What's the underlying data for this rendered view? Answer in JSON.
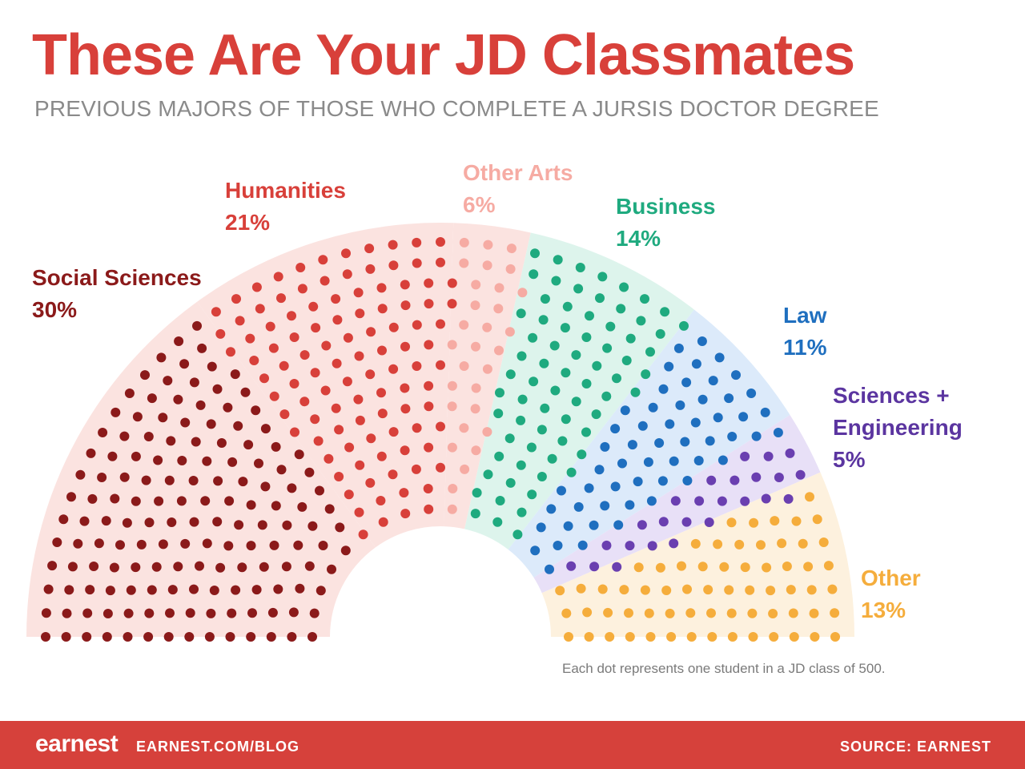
{
  "header": {
    "title": "These Are Your JD Classmates",
    "subtitle": "PREVIOUS MAJORS OF THOSE WHO COMPLETE A JURSIS DOCTOR DEGREE"
  },
  "chart_data": {
    "type": "parliament dot chart",
    "total_dots": 500,
    "series": [
      {
        "name": "Social Sciences",
        "label": "30%",
        "value": 30,
        "color": "#8b1a1a",
        "bg": "#fbe3e0"
      },
      {
        "name": "Humanities",
        "label": "21%",
        "value": 21,
        "color": "#d8403a",
        "bg": "#fbe3e0"
      },
      {
        "name": "Other Arts",
        "label": "6%",
        "value": 6,
        "color": "#f6aba3",
        "bg": "#fbe3e0"
      },
      {
        "name": "Business",
        "label": "14%",
        "value": 14,
        "color": "#1faa7f",
        "bg": "#ddf4ec"
      },
      {
        "name": "Law",
        "label": "11%",
        "value": 11,
        "color": "#1f6fbf",
        "bg": "#dceafa"
      },
      {
        "name": "Sciences + Engineering",
        "label": "5%",
        "value": 5,
        "color": "#6a3fb0",
        "bg": "#e8e0f7"
      },
      {
        "name": "Other",
        "label": "13%",
        "value": 13,
        "color": "#f5ad3c",
        "bg": "#fdf1de"
      }
    ],
    "note": "Each dot represents one student in a JD class of 500."
  },
  "footer": {
    "logo": "earnest",
    "link": "EARNEST.COM/BLOG",
    "source": "SOURCE: EARNEST"
  }
}
